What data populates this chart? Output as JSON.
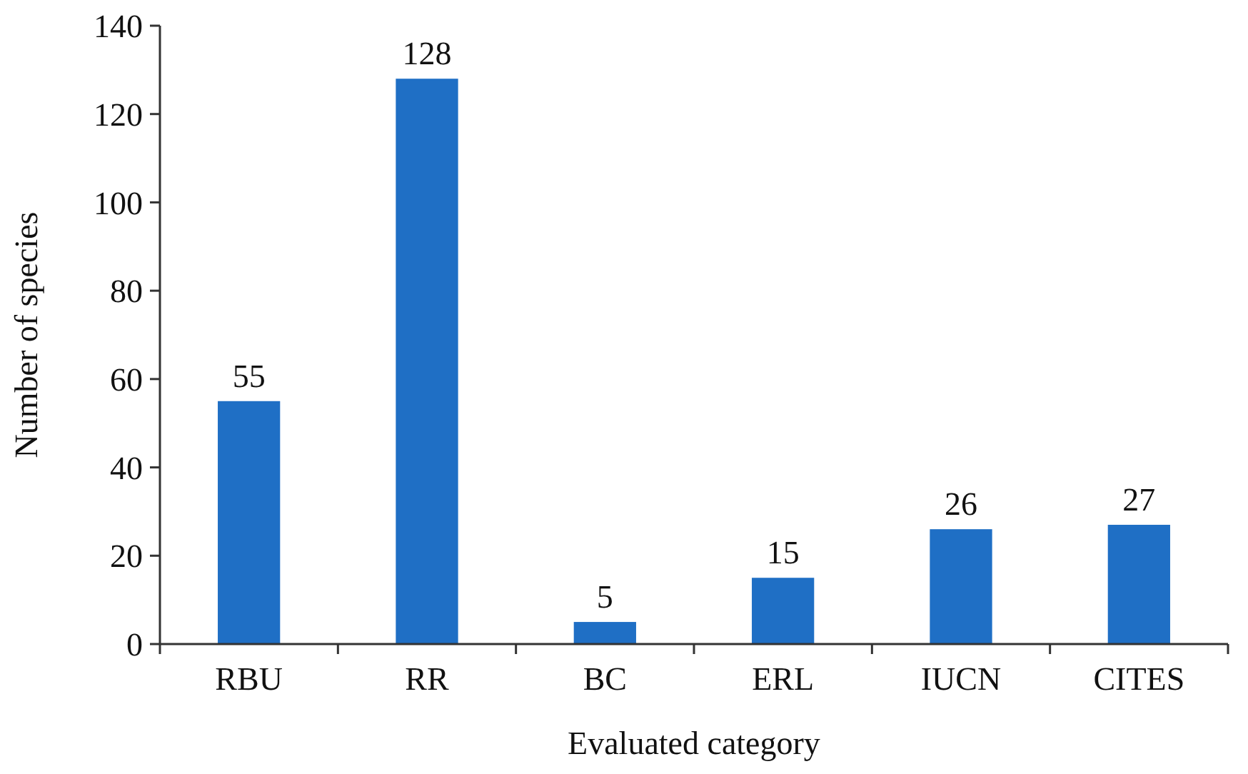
{
  "chart_data": {
    "type": "bar",
    "xlabel": "Evaluated category",
    "ylabel": "Number of species",
    "categories": [
      "RBU",
      "RR",
      "BC",
      "ERL",
      "IUCN",
      "CITES"
    ],
    "values": [
      55,
      128,
      5,
      15,
      26,
      27
    ],
    "color": "#1f6fc5",
    "ylim": [
      0,
      140
    ],
    "yticks": [
      0,
      20,
      40,
      60,
      80,
      100,
      120,
      140
    ],
    "data_labels": true
  }
}
